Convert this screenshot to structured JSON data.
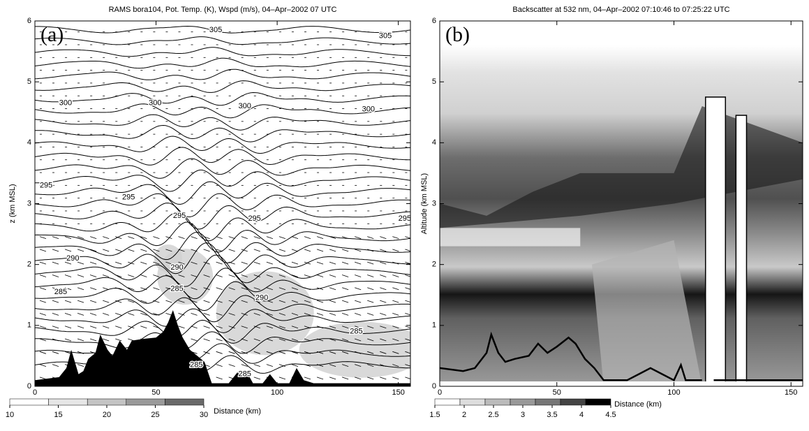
{
  "chart_data": [
    {
      "type": "contour",
      "panel_label": "(a)",
      "title": "RAMS bora104, Pot. Temp. (K), Wspd (m/s), 04–Apr–2002 07 UTC",
      "xlabel": "Distance (km)",
      "ylabel": "z (km MSL)",
      "xlim": [
        0,
        155
      ],
      "ylim": [
        0,
        6
      ],
      "xticks": [
        0,
        50,
        100,
        150
      ],
      "yticks": [
        0,
        1,
        2,
        3,
        4,
        5,
        6
      ],
      "colorbar": {
        "lim": [
          10,
          30
        ],
        "ticks": [
          10,
          15,
          20,
          25,
          30
        ],
        "colors": [
          "#ffffff",
          "#e6e6e6",
          "#c4c4c4",
          "#9a9a9a",
          "#6a6a6a"
        ]
      },
      "contour_labels": [
        305,
        305,
        300,
        300,
        300,
        300,
        295,
        295,
        295,
        295,
        295,
        290,
        290,
        290,
        285,
        285,
        285,
        285,
        285
      ],
      "terrain": {
        "color": "#000000",
        "x": [
          0,
          10,
          13,
          15,
          18,
          20,
          22,
          25,
          27,
          30,
          32,
          35,
          38,
          40,
          45,
          50,
          53,
          55,
          57,
          59,
          61,
          64,
          67,
          70,
          73,
          80,
          84,
          88,
          90,
          94,
          97,
          100,
          105,
          108,
          111,
          115,
          155
        ],
        "values": [
          0.1,
          0.15,
          0.3,
          0.6,
          0.2,
          0.25,
          0.45,
          0.55,
          0.85,
          0.6,
          0.5,
          0.75,
          0.6,
          0.75,
          0.78,
          0.8,
          0.9,
          1.05,
          1.25,
          1.0,
          0.8,
          0.6,
          0.5,
          0.4,
          0.05,
          0.05,
          0.25,
          0.2,
          0.05,
          0.05,
          0.2,
          0.05,
          0.05,
          0.3,
          0.1,
          0.05,
          0.05
        ]
      }
    },
    {
      "type": "lidar",
      "panel_label": "(b)",
      "title": "Backscatter at 532 nm, 04–Apr–2002 07:10:46 to 07:25:22 UTC",
      "xlabel": "Distance (km)",
      "ylabel": "Altitude (km MSL)",
      "xlim": [
        0,
        155
      ],
      "ylim": [
        0,
        6
      ],
      "xticks": [
        0,
        50,
        100,
        150
      ],
      "yticks": [
        0,
        1,
        2,
        3,
        4,
        5,
        6
      ],
      "colorbar": {
        "lim": [
          1.5,
          4.5
        ],
        "ticks": [
          1.5,
          2,
          2.5,
          3,
          3.5,
          4,
          4.5
        ],
        "colors": [
          "#ffffff",
          "#dddddd",
          "#bbbbbb",
          "#999999",
          "#777777",
          "#444444",
          "#000000"
        ]
      },
      "terrain": {
        "color": "#000000",
        "x": [
          0,
          10,
          15,
          20,
          22,
          25,
          28,
          32,
          38,
          42,
          46,
          50,
          55,
          58,
          62,
          66,
          70,
          74,
          80,
          85,
          90,
          95,
          100,
          103,
          105,
          112,
          114,
          117,
          155
        ],
        "values": [
          0.3,
          0.25,
          0.3,
          0.55,
          0.85,
          0.55,
          0.4,
          0.45,
          0.5,
          0.7,
          0.55,
          0.65,
          0.8,
          0.7,
          0.45,
          0.3,
          0.1,
          0.1,
          0.1,
          0.2,
          0.3,
          0.2,
          0.1,
          0.35,
          0.1,
          0.1,
          null,
          0.1,
          0.1
        ]
      }
    }
  ]
}
